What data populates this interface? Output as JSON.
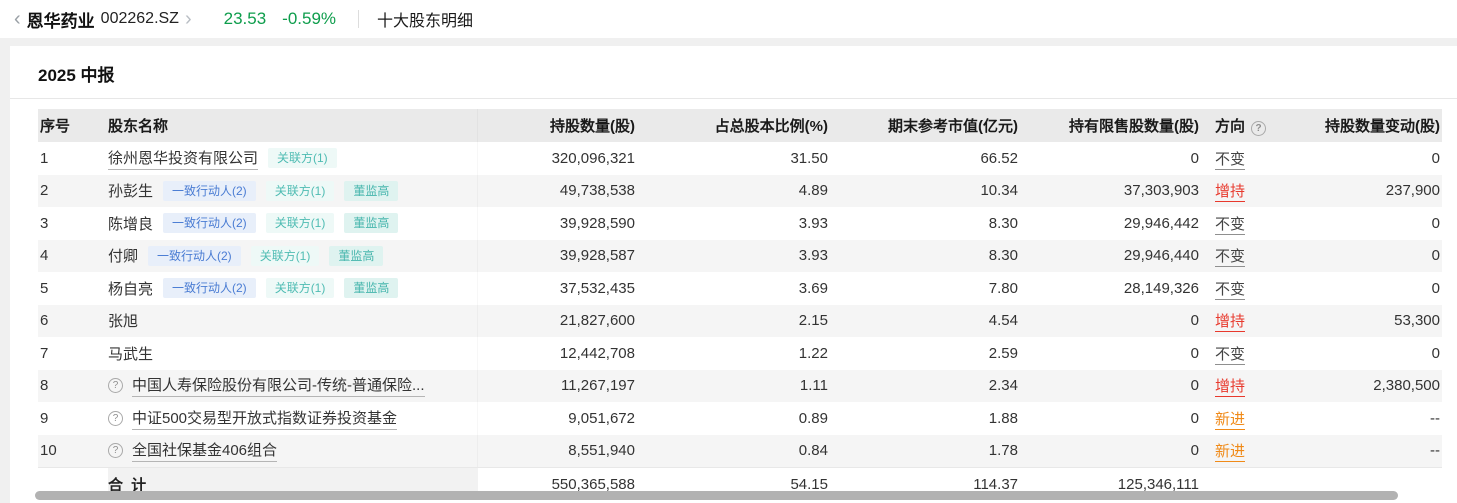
{
  "breadcrumb": {
    "back_icon": "‹",
    "stock_name": "恩华药业",
    "stock_code": "002262.SZ",
    "forward_icon": "›",
    "price": "23.53",
    "change_percent": "-0.59%",
    "page_title": "十大股东明细"
  },
  "report": {
    "title": "2025 中报"
  },
  "table": {
    "headers": {
      "no": "序号",
      "name": "股东名称",
      "shares": "持股数量(股)",
      "pct": "占总股本比例(%)",
      "value": "期末参考市值(亿元)",
      "restricted": "持有限售股数量(股)",
      "direction": "方向",
      "change": "持股数量变动(股)"
    },
    "rows": [
      {
        "no": "1",
        "name": "徐州恩华投资有限公司",
        "link": true,
        "help": false,
        "tags": [
          {
            "label": "关联方(1)",
            "type": "teal-light"
          }
        ],
        "shares": "320,096,321",
        "pct": "31.50",
        "value": "66.52",
        "restricted": "0",
        "direction": "不变",
        "dir_type": "unchanged",
        "change": "0"
      },
      {
        "no": "2",
        "name": "孙彭生",
        "link": false,
        "help": false,
        "tags": [
          {
            "label": "一致行动人(2)",
            "type": "blue"
          },
          {
            "label": "关联方(1)",
            "type": "teal-light"
          },
          {
            "label": "董监高",
            "type": "teal"
          }
        ],
        "shares": "49,738,538",
        "pct": "4.89",
        "value": "10.34",
        "restricted": "37,303,903",
        "direction": "增持",
        "dir_type": "increase",
        "change": "237,900"
      },
      {
        "no": "3",
        "name": "陈增良",
        "link": false,
        "help": false,
        "tags": [
          {
            "label": "一致行动人(2)",
            "type": "blue"
          },
          {
            "label": "关联方(1)",
            "type": "teal-light"
          },
          {
            "label": "董监高",
            "type": "teal"
          }
        ],
        "shares": "39,928,590",
        "pct": "3.93",
        "value": "8.30",
        "restricted": "29,946,442",
        "direction": "不变",
        "dir_type": "unchanged",
        "change": "0"
      },
      {
        "no": "4",
        "name": "付卿",
        "link": false,
        "help": false,
        "tags": [
          {
            "label": "一致行动人(2)",
            "type": "blue"
          },
          {
            "label": "关联方(1)",
            "type": "teal-light"
          },
          {
            "label": "董监高",
            "type": "teal"
          }
        ],
        "shares": "39,928,587",
        "pct": "3.93",
        "value": "8.30",
        "restricted": "29,946,440",
        "direction": "不变",
        "dir_type": "unchanged",
        "change": "0"
      },
      {
        "no": "5",
        "name": "杨自亮",
        "link": false,
        "help": false,
        "tags": [
          {
            "label": "一致行动人(2)",
            "type": "blue"
          },
          {
            "label": "关联方(1)",
            "type": "teal-light"
          },
          {
            "label": "董监高",
            "type": "teal"
          }
        ],
        "shares": "37,532,435",
        "pct": "3.69",
        "value": "7.80",
        "restricted": "28,149,326",
        "direction": "不变",
        "dir_type": "unchanged",
        "change": "0"
      },
      {
        "no": "6",
        "name": "张旭",
        "link": false,
        "help": false,
        "tags": [],
        "shares": "21,827,600",
        "pct": "2.15",
        "value": "4.54",
        "restricted": "0",
        "direction": "增持",
        "dir_type": "increase",
        "change": "53,300"
      },
      {
        "no": "7",
        "name": "马武生",
        "link": false,
        "help": false,
        "tags": [],
        "shares": "12,442,708",
        "pct": "1.22",
        "value": "2.59",
        "restricted": "0",
        "direction": "不变",
        "dir_type": "unchanged",
        "change": "0"
      },
      {
        "no": "8",
        "name": "中国人寿保险股份有限公司-传统-普通保险...",
        "link": true,
        "help": true,
        "tags": [],
        "shares": "11,267,197",
        "pct": "1.11",
        "value": "2.34",
        "restricted": "0",
        "direction": "增持",
        "dir_type": "increase",
        "change": "2,380,500"
      },
      {
        "no": "9",
        "name": "中证500交易型开放式指数证券投资基金",
        "link": true,
        "help": true,
        "tags": [],
        "shares": "9,051,672",
        "pct": "0.89",
        "value": "1.88",
        "restricted": "0",
        "direction": "新进",
        "dir_type": "new",
        "change": "--"
      },
      {
        "no": "10",
        "name": "全国社保基金406组合",
        "link": true,
        "help": true,
        "tags": [],
        "shares": "8,551,940",
        "pct": "0.84",
        "value": "1.78",
        "restricted": "0",
        "direction": "新进",
        "dir_type": "new",
        "change": "--"
      }
    ],
    "total": {
      "label": "合 计",
      "shares": "550,365,588",
      "pct": "54.15",
      "value": "114.37",
      "restricted": "125,346,111",
      "direction": "",
      "change": ""
    }
  },
  "icons": {
    "help_glyph": "?",
    "divider": "|"
  },
  "colors": {
    "price_green": "#0e9d4c",
    "direction_increase_red": "#e8392d",
    "direction_new_orange": "#f08a18",
    "tag_blue": "#4a7cd3",
    "tag_teal": "#4fbcb3",
    "header_bg": "#eaeaea",
    "zebra_bg": "#f5f5f5"
  }
}
